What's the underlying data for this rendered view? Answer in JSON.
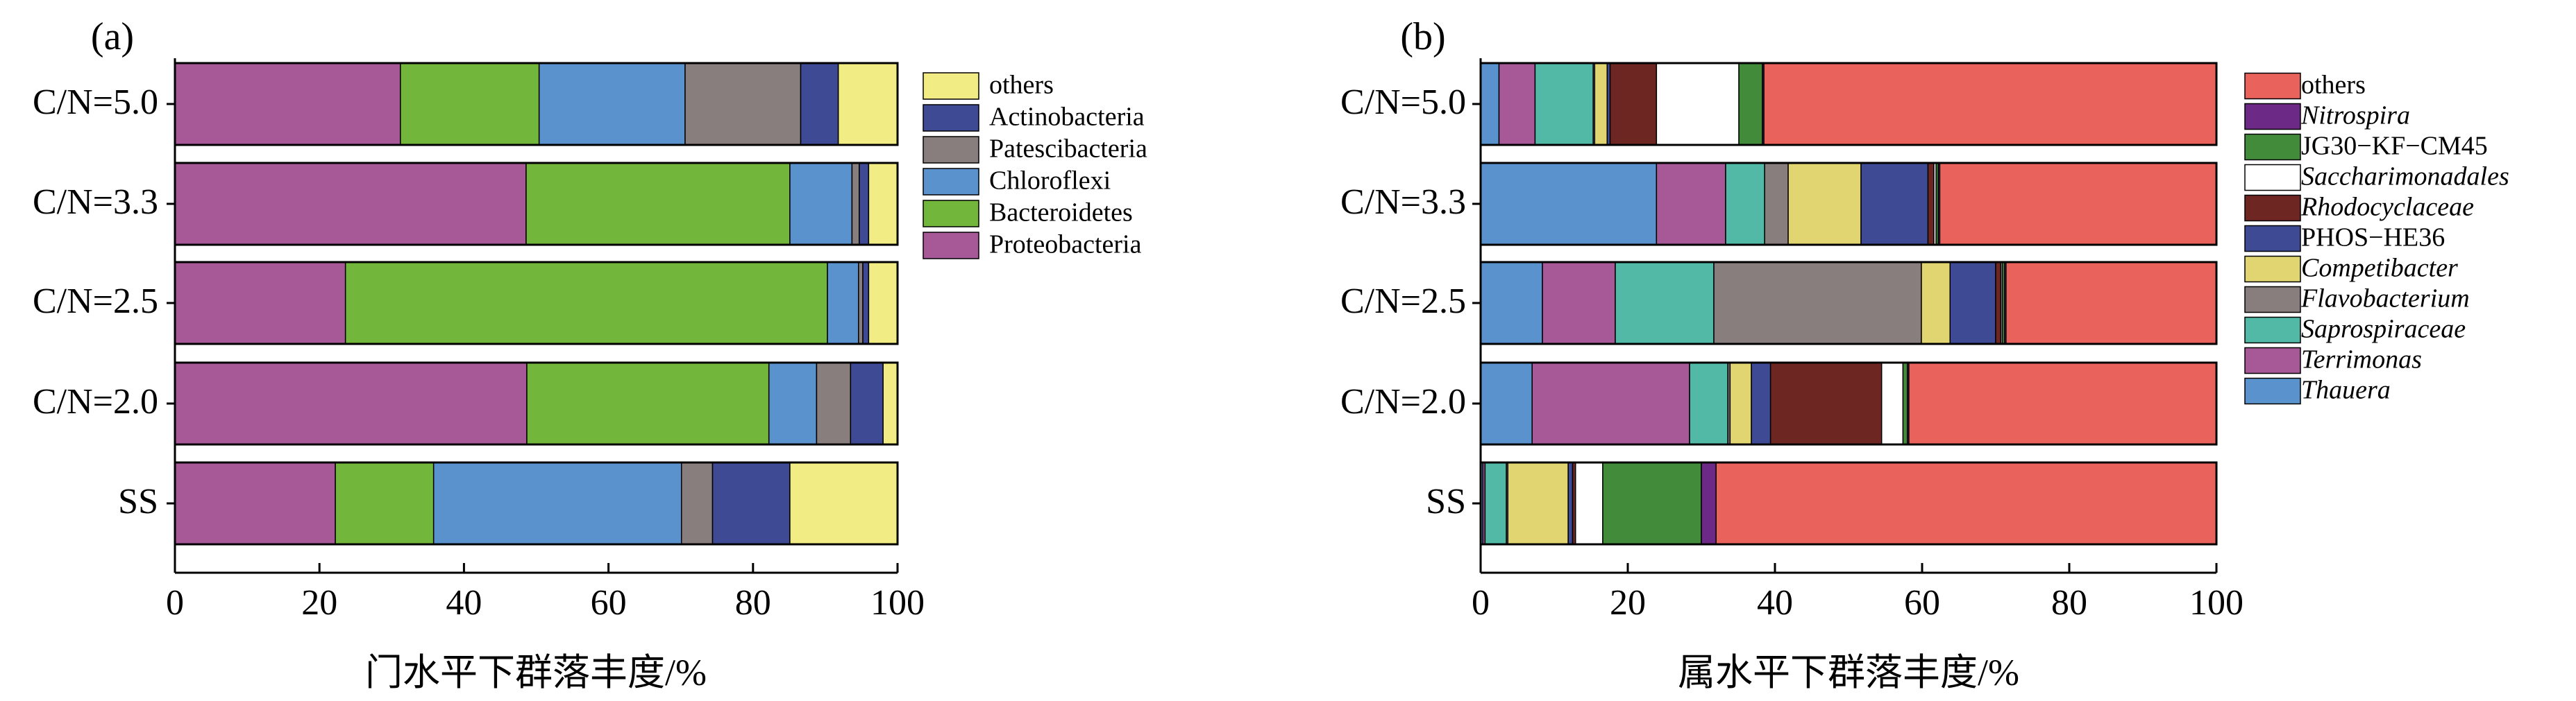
{
  "chart_data": [
    {
      "type": "bar",
      "orientation": "horizontal",
      "stacked": true,
      "panel_label": "(a)",
      "xlabel": "门水平下群落丰度/%",
      "ylabel": "",
      "xlim": [
        0,
        100
      ],
      "xticks": [
        "0",
        "20",
        "40",
        "60",
        "80",
        "100"
      ],
      "categories": [
        "C/N=5.0",
        "C/N=3.3",
        "C/N=2.5",
        "C/N=2.0",
        "SS"
      ],
      "legend_position": "right",
      "series": [
        {
          "name": "Proteobacteria",
          "color": "#a65897",
          "italic": false,
          "values": [
            31.2,
            48.6,
            23.6,
            48.7,
            22.2
          ]
        },
        {
          "name": "Bacteroidetes",
          "color": "#72b63b",
          "italic": false,
          "values": [
            19.2,
            36.5,
            66.7,
            33.5,
            13.6
          ]
        },
        {
          "name": "Chloroflexi",
          "color": "#5992cc",
          "italic": false,
          "values": [
            20.2,
            8.6,
            4.3,
            6.6,
            34.3
          ]
        },
        {
          "name": "Patescibacteria",
          "color": "#877e7d",
          "italic": false,
          "values": [
            16.0,
            1.0,
            0.6,
            4.7,
            4.3
          ]
        },
        {
          "name": "Actinobacteria",
          "color": "#3f4a94",
          "italic": false,
          "values": [
            5.2,
            1.3,
            0.8,
            4.5,
            10.7
          ]
        },
        {
          "name": "others",
          "color": "#f2ec85",
          "italic": false,
          "values": [
            8.2,
            4.0,
            4.0,
            2.0,
            14.9
          ]
        }
      ]
    },
    {
      "type": "bar",
      "orientation": "horizontal",
      "stacked": true,
      "panel_label": "(b)",
      "xlabel": "属水平下群落丰度/%",
      "ylabel": "",
      "xlim": [
        0,
        100
      ],
      "xticks": [
        "0",
        "20",
        "40",
        "60",
        "80",
        "100"
      ],
      "categories": [
        "C/N=5.0",
        "C/N=3.3",
        "C/N=2.5",
        "C/N=2.0",
        "SS"
      ],
      "legend_position": "right",
      "series": [
        {
          "name": "Thauera",
          "color": "#5992cc",
          "italic": true,
          "values": [
            2.5,
            23.9,
            8.4,
            7.0,
            0.3
          ]
        },
        {
          "name": "Terrimonas",
          "color": "#a65897",
          "italic": true,
          "values": [
            4.9,
            9.4,
            9.9,
            21.4,
            0.3
          ]
        },
        {
          "name": "Saprospiraceae",
          "color": "#52b9a7",
          "italic": true,
          "values": [
            7.9,
            5.3,
            13.4,
            5.2,
            2.9
          ]
        },
        {
          "name": "Flavobacterium",
          "color": "#877e7d",
          "italic": true,
          "values": [
            0.2,
            3.2,
            28.2,
            0.3,
            0.2
          ]
        },
        {
          "name": "Competibacter",
          "color": "#e0d570",
          "italic": true,
          "values": [
            1.7,
            9.9,
            3.9,
            2.9,
            8.2
          ]
        },
        {
          "name": "PHOS−HE36",
          "color": "#3f4a94",
          "italic": false,
          "values": [
            0.4,
            9.1,
            6.2,
            2.6,
            0.6
          ]
        },
        {
          "name": "Rhodocyclaceae",
          "color": "#6e2623",
          "italic": true,
          "values": [
            6.3,
            0.8,
            0.7,
            15.1,
            0.4
          ]
        },
        {
          "name": "Saccharimonadales",
          "color": "#ffffff",
          "italic": true,
          "values": [
            11.2,
            0.3,
            0.2,
            2.9,
            3.7
          ]
        },
        {
          "name": "JG30−KF−CM45",
          "color": "#428b3a",
          "italic": false,
          "values": [
            3.2,
            0.3,
            0.3,
            0.6,
            13.4
          ]
        },
        {
          "name": "Nitrospira",
          "color": "#6c2a86",
          "italic": true,
          "values": [
            0.2,
            0.2,
            0.2,
            0.2,
            2.0
          ]
        },
        {
          "name": "others",
          "color": "#e9625c",
          "italic": false,
          "values": [
            61.5,
            37.6,
            28.6,
            41.8,
            68.0
          ]
        }
      ]
    }
  ]
}
